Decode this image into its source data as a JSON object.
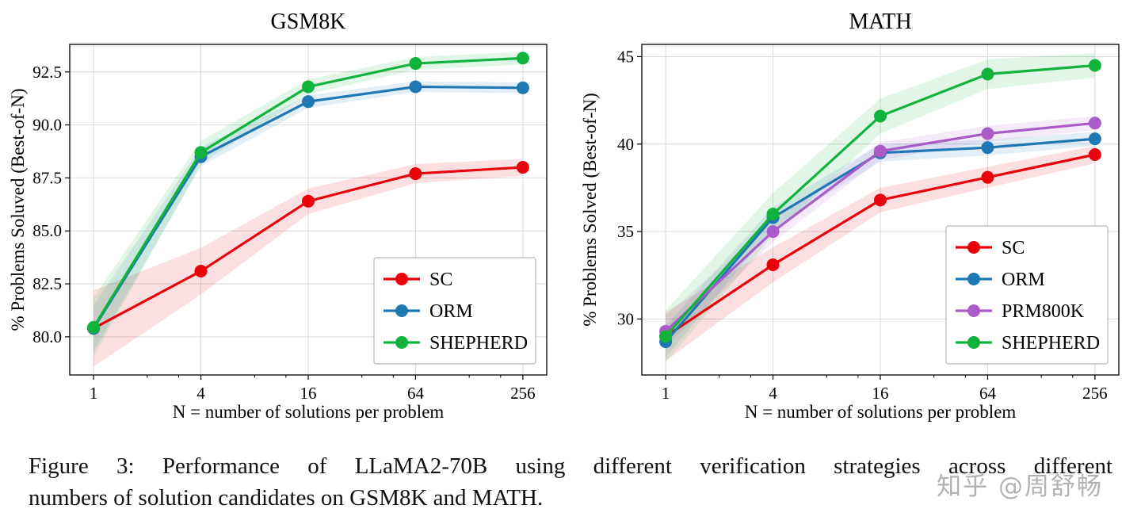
{
  "page": {
    "background": "#ffffff"
  },
  "figure": {
    "caption_line1": "Figure 3:  Performance of LLaMA2-70B using different verification strategies across different",
    "caption_line2": "numbers of solution candidates on GSM8K and MATH.",
    "watermark": "知乎 @周舒畅"
  },
  "chart_data": [
    {
      "type": "line",
      "name": "gsm8k",
      "title": "GSM8K",
      "xlabel": "N = number of solutions per problem",
      "ylabel": "% Problems Soluved (Best-of-N)",
      "x": [
        1,
        4,
        16,
        64,
        256
      ],
      "x_ticklabels": [
        "1",
        "4",
        "16",
        "64",
        "256"
      ],
      "x_scale": "log",
      "ylim": [
        78.2,
        93.8
      ],
      "yticks": [
        80.0,
        82.5,
        85.0,
        87.5,
        90.0,
        92.5
      ],
      "ytick_labels": [
        "80.0",
        "82.5",
        "85.0",
        "87.5",
        "90.0",
        "92.5"
      ],
      "grid": true,
      "grid_color": "#d9d9d9",
      "legend_position": "lower right",
      "series": [
        {
          "name": "SC",
          "color": "#e8000b",
          "values": [
            80.4,
            83.1,
            86.4,
            87.7,
            88.0
          ],
          "band": [
            1.8,
            1.1,
            0.6,
            0.45,
            0.4
          ]
        },
        {
          "name": "ORM",
          "color": "#1f77b4",
          "values": [
            80.4,
            88.5,
            91.1,
            91.8,
            91.75
          ],
          "band": [
            1.1,
            0.45,
            0.3,
            0.25,
            0.25
          ]
        },
        {
          "name": "SHEPHERD",
          "color": "#12b33c",
          "values": [
            80.45,
            88.7,
            91.8,
            92.9,
            93.15
          ],
          "band": [
            1.4,
            0.55,
            0.35,
            0.3,
            0.3
          ]
        }
      ]
    },
    {
      "type": "line",
      "name": "math",
      "title": "MATH",
      "xlabel": "N = number of solutions per problem",
      "ylabel": "% Problems Solved (Best-of-N)",
      "x": [
        1,
        4,
        16,
        64,
        256
      ],
      "x_ticklabels": [
        "1",
        "4",
        "16",
        "64",
        "256"
      ],
      "x_scale": "log",
      "ylim": [
        26.8,
        45.7
      ],
      "yticks": [
        30,
        35,
        40,
        45
      ],
      "ytick_labels": [
        "30",
        "35",
        "40",
        "45"
      ],
      "grid": true,
      "grid_color": "#d9d9d9",
      "legend_position": "lower right",
      "series": [
        {
          "name": "SC",
          "color": "#e8000b",
          "values": [
            29.0,
            33.1,
            36.8,
            38.1,
            39.4
          ],
          "band": [
            1.4,
            1.0,
            0.7,
            0.6,
            0.5
          ]
        },
        {
          "name": "ORM",
          "color": "#1f77b4",
          "values": [
            28.7,
            35.8,
            39.5,
            39.8,
            40.3
          ],
          "band": [
            0.9,
            0.6,
            0.5,
            0.45,
            0.4
          ]
        },
        {
          "name": "PRM800K",
          "color": "#ab5bc8",
          "values": [
            29.3,
            35.0,
            39.6,
            40.6,
            41.2
          ],
          "band": [
            0.9,
            0.6,
            0.5,
            0.45,
            0.4
          ]
        },
        {
          "name": "SHEPHERD",
          "color": "#12b33c",
          "values": [
            29.0,
            36.0,
            41.6,
            44.0,
            44.5
          ],
          "band": [
            1.5,
            1.2,
            1.0,
            0.85,
            0.7
          ]
        }
      ]
    }
  ]
}
